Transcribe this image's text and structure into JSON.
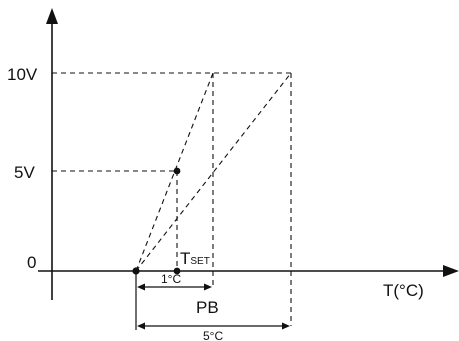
{
  "axes": {
    "y_tick_10": "10V",
    "y_tick_5": "5V",
    "y_tick_0": "0",
    "x_label": "T(°C)"
  },
  "annotations": {
    "tset_main": "T",
    "tset_sub": "SET",
    "one_degree": "1°C",
    "pb": "PB",
    "five_degree": "5°C"
  }
}
